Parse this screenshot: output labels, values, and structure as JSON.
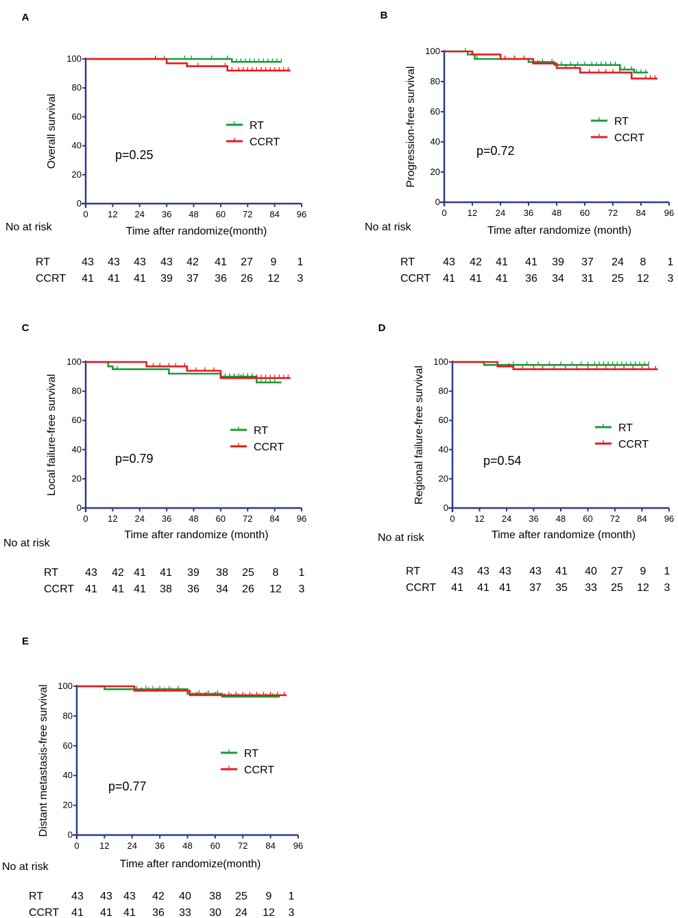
{
  "figure": {
    "no_at_risk_label": "No at risk",
    "x_ticks": [
      0,
      12,
      24,
      36,
      48,
      60,
      72,
      84,
      96
    ],
    "y_ticks": [
      0,
      20,
      40,
      60,
      80,
      100
    ],
    "colors": {
      "RT": "#1a9a3a",
      "CCRT": "#e8191b",
      "axis": "#2b3990"
    }
  },
  "chart_data": [
    {
      "panel": "A",
      "type": "line",
      "subtype": "kaplan-meier",
      "ylabel": "Overall survival",
      "xlabel": "Time after randomize(month)",
      "xlim": [
        0,
        96
      ],
      "ylim": [
        0,
        100
      ],
      "pvalue": "p=0.25",
      "legend": [
        "RT",
        "CCRT"
      ],
      "series": [
        {
          "name": "RT",
          "steps": [
            [
              0,
              100
            ],
            [
              65,
              100
            ],
            [
              65,
              98
            ],
            [
              87,
              98
            ]
          ],
          "censor": [
            31,
            35,
            44,
            47,
            56,
            63,
            67,
            69,
            71,
            73,
            75,
            77,
            79,
            81,
            83,
            85,
            87
          ]
        },
        {
          "name": "CCRT",
          "steps": [
            [
              0,
              100
            ],
            [
              36,
              100
            ],
            [
              36,
              97
            ],
            [
              45,
              97
            ],
            [
              45,
              95
            ],
            [
              63,
              95
            ],
            [
              63,
              92
            ],
            [
              91,
              92
            ]
          ],
          "censor": [
            31,
            50,
            62,
            65,
            68,
            70,
            72,
            74,
            76,
            78,
            80,
            82,
            84,
            86,
            88,
            90
          ]
        }
      ],
      "risk_table": {
        "rows": [
          {
            "label": "RT",
            "values": [
              "43",
              "43",
              "43",
              "43",
              "42",
              "41",
              "27",
              "9",
              "1"
            ]
          },
          {
            "label": "CCRT",
            "values": [
              "41",
              "41",
              "41",
              "39",
              "37",
              "36",
              "26",
              "12",
              "3"
            ]
          }
        ]
      }
    },
    {
      "panel": "B",
      "type": "line",
      "subtype": "kaplan-meier",
      "ylabel": "Progression-free survival",
      "xlabel": "Time after randomize (month)",
      "xlim": [
        0,
        96
      ],
      "ylim": [
        0,
        100
      ],
      "pvalue": "p=0.72",
      "legend": [
        "RT",
        "CCRT"
      ],
      "series": [
        {
          "name": "RT",
          "steps": [
            [
              0,
              100
            ],
            [
              10,
              100
            ],
            [
              10,
              98
            ],
            [
              13,
              98
            ],
            [
              13,
              95
            ],
            [
              36,
              95
            ],
            [
              36,
              93
            ],
            [
              47,
              93
            ],
            [
              47,
              91
            ],
            [
              75,
              91
            ],
            [
              75,
              88
            ],
            [
              81,
              88
            ],
            [
              81,
              86
            ],
            [
              87,
              86
            ]
          ],
          "censor": [
            9,
            14,
            26,
            30,
            36,
            38,
            42,
            46,
            50,
            54,
            57,
            60,
            63,
            65,
            67,
            69,
            71,
            73,
            77,
            80,
            82,
            84,
            86
          ]
        },
        {
          "name": "CCRT",
          "steps": [
            [
              0,
              100
            ],
            [
              12,
              100
            ],
            [
              12,
              98
            ],
            [
              24,
              98
            ],
            [
              24,
              95
            ],
            [
              38,
              95
            ],
            [
              38,
              92
            ],
            [
              48,
              92
            ],
            [
              48,
              89
            ],
            [
              58,
              89
            ],
            [
              58,
              86
            ],
            [
              80,
              86
            ],
            [
              80,
              82
            ],
            [
              91,
              82
            ]
          ],
          "censor": [
            26,
            30,
            34,
            40,
            52,
            56,
            62,
            66,
            69,
            72,
            75,
            86,
            88,
            90
          ]
        }
      ],
      "risk_table": {
        "rows": [
          {
            "label": "RT",
            "values": [
              "43",
              "42",
              "41",
              "41",
              "39",
              "37",
              "24",
              "8",
              "1"
            ]
          },
          {
            "label": "CCRT",
            "values": [
              "41",
              "41",
              "41",
              "36",
              "34",
              "31",
              "25",
              "12",
              "3"
            ]
          }
        ]
      }
    },
    {
      "panel": "C",
      "type": "line",
      "subtype": "kaplan-meier",
      "ylabel": "Local failure-free survival",
      "xlabel": "Time after randomize (month)",
      "xlim": [
        0,
        96
      ],
      "ylim": [
        0,
        100
      ],
      "pvalue": "p=0.79",
      "legend": [
        "RT",
        "CCRT"
      ],
      "series": [
        {
          "name": "RT",
          "steps": [
            [
              0,
              100
            ],
            [
              10,
              100
            ],
            [
              10,
              97
            ],
            [
              12,
              97
            ],
            [
              12,
              95
            ],
            [
              37,
              95
            ],
            [
              37,
              92
            ],
            [
              60,
              92
            ],
            [
              60,
              90
            ],
            [
              76,
              90
            ],
            [
              76,
              86
            ],
            [
              87,
              86
            ]
          ],
          "censor": [
            14,
            62,
            64,
            66,
            68,
            70,
            72,
            74,
            76,
            78,
            80,
            82,
            84
          ]
        },
        {
          "name": "CCRT",
          "steps": [
            [
              0,
              100
            ],
            [
              27,
              100
            ],
            [
              27,
              97
            ],
            [
              45,
              97
            ],
            [
              45,
              94
            ],
            [
              60,
              94
            ],
            [
              60,
              89
            ],
            [
              91,
              89
            ]
          ],
          "censor": [
            30,
            33,
            37,
            40,
            44,
            49,
            53,
            57,
            66,
            69,
            72,
            74,
            76,
            78,
            80,
            82,
            84,
            86,
            88,
            90
          ]
        }
      ],
      "risk_table": {
        "rows": [
          {
            "label": "RT",
            "values": [
              "43",
              "42",
              "41",
              "41",
              "39",
              "38",
              "25",
              "8",
              "1"
            ]
          },
          {
            "label": "CCRT",
            "values": [
              "41",
              "41",
              "41",
              "38",
              "36",
              "34",
              "26",
              "12",
              "3"
            ]
          }
        ]
      }
    },
    {
      "panel": "D",
      "type": "line",
      "subtype": "kaplan-meier",
      "ylabel": "Regional failure-free survival",
      "xlabel": "Time after randomize (month)",
      "xlim": [
        0,
        96
      ],
      "ylim": [
        0,
        100
      ],
      "pvalue": "p=0.54",
      "legend": [
        "RT",
        "CCRT"
      ],
      "series": [
        {
          "name": "RT",
          "steps": [
            [
              0,
              100
            ],
            [
              14,
              100
            ],
            [
              14,
              98
            ],
            [
              87,
              98
            ]
          ],
          "censor": [
            27,
            33,
            38,
            43,
            48,
            53,
            57,
            60,
            63,
            65,
            67,
            69,
            71,
            73,
            75,
            77,
            79,
            81,
            83,
            85,
            87
          ]
        },
        {
          "name": "CCRT",
          "steps": [
            [
              0,
              100
            ],
            [
              20,
              100
            ],
            [
              20,
              97
            ],
            [
              27,
              97
            ],
            [
              27,
              95
            ],
            [
              91,
              95
            ]
          ],
          "censor": [
            25,
            31,
            36,
            40,
            45,
            50,
            55,
            60,
            64,
            68,
            72,
            76,
            80,
            84,
            87,
            90
          ]
        }
      ],
      "risk_table": {
        "rows": [
          {
            "label": "RT",
            "values": [
              "43",
              "43",
              "43",
              "43",
              "41",
              "40",
              "27",
              "9",
              "1"
            ]
          },
          {
            "label": "CCRT",
            "values": [
              "41",
              "41",
              "41",
              "37",
              "35",
              "33",
              "25",
              "12",
              "3"
            ]
          }
        ]
      }
    },
    {
      "panel": "E",
      "type": "line",
      "subtype": "kaplan-meier",
      "ylabel": "Distant metastasis-free survival",
      "xlabel": "Time after randomize(month)",
      "xlim": [
        0,
        96
      ],
      "ylim": [
        0,
        100
      ],
      "pvalue": "p=0.77",
      "legend": [
        "RT",
        "CCRT"
      ],
      "series": [
        {
          "name": "RT",
          "steps": [
            [
              0,
              100
            ],
            [
              12,
              100
            ],
            [
              12,
              98
            ],
            [
              48,
              98
            ],
            [
              48,
              95
            ],
            [
              63,
              95
            ],
            [
              63,
              93
            ],
            [
              88,
              93
            ]
          ],
          "censor": [
            26,
            30,
            33,
            36,
            40,
            44,
            53,
            57,
            61,
            64,
            67,
            70,
            73,
            76,
            79,
            82,
            85
          ]
        },
        {
          "name": "CCRT",
          "steps": [
            [
              0,
              100
            ],
            [
              25,
              100
            ],
            [
              25,
              97
            ],
            [
              49,
              97
            ],
            [
              49,
              94
            ],
            [
              91,
              94
            ]
          ],
          "censor": [
            28,
            31,
            35,
            38,
            41,
            44,
            52,
            56,
            60,
            66,
            69,
            72,
            75,
            78,
            81,
            84,
            87,
            90
          ]
        }
      ],
      "risk_table": {
        "rows": [
          {
            "label": "RT",
            "values": [
              "43",
              "43",
              "43",
              "42",
              "40",
              "38",
              "25",
              "9",
              "1"
            ]
          },
          {
            "label": "CCRT",
            "values": [
              "41",
              "41",
              "41",
              "36",
              "33",
              "30",
              "24",
              "12",
              "3"
            ]
          }
        ]
      }
    }
  ]
}
